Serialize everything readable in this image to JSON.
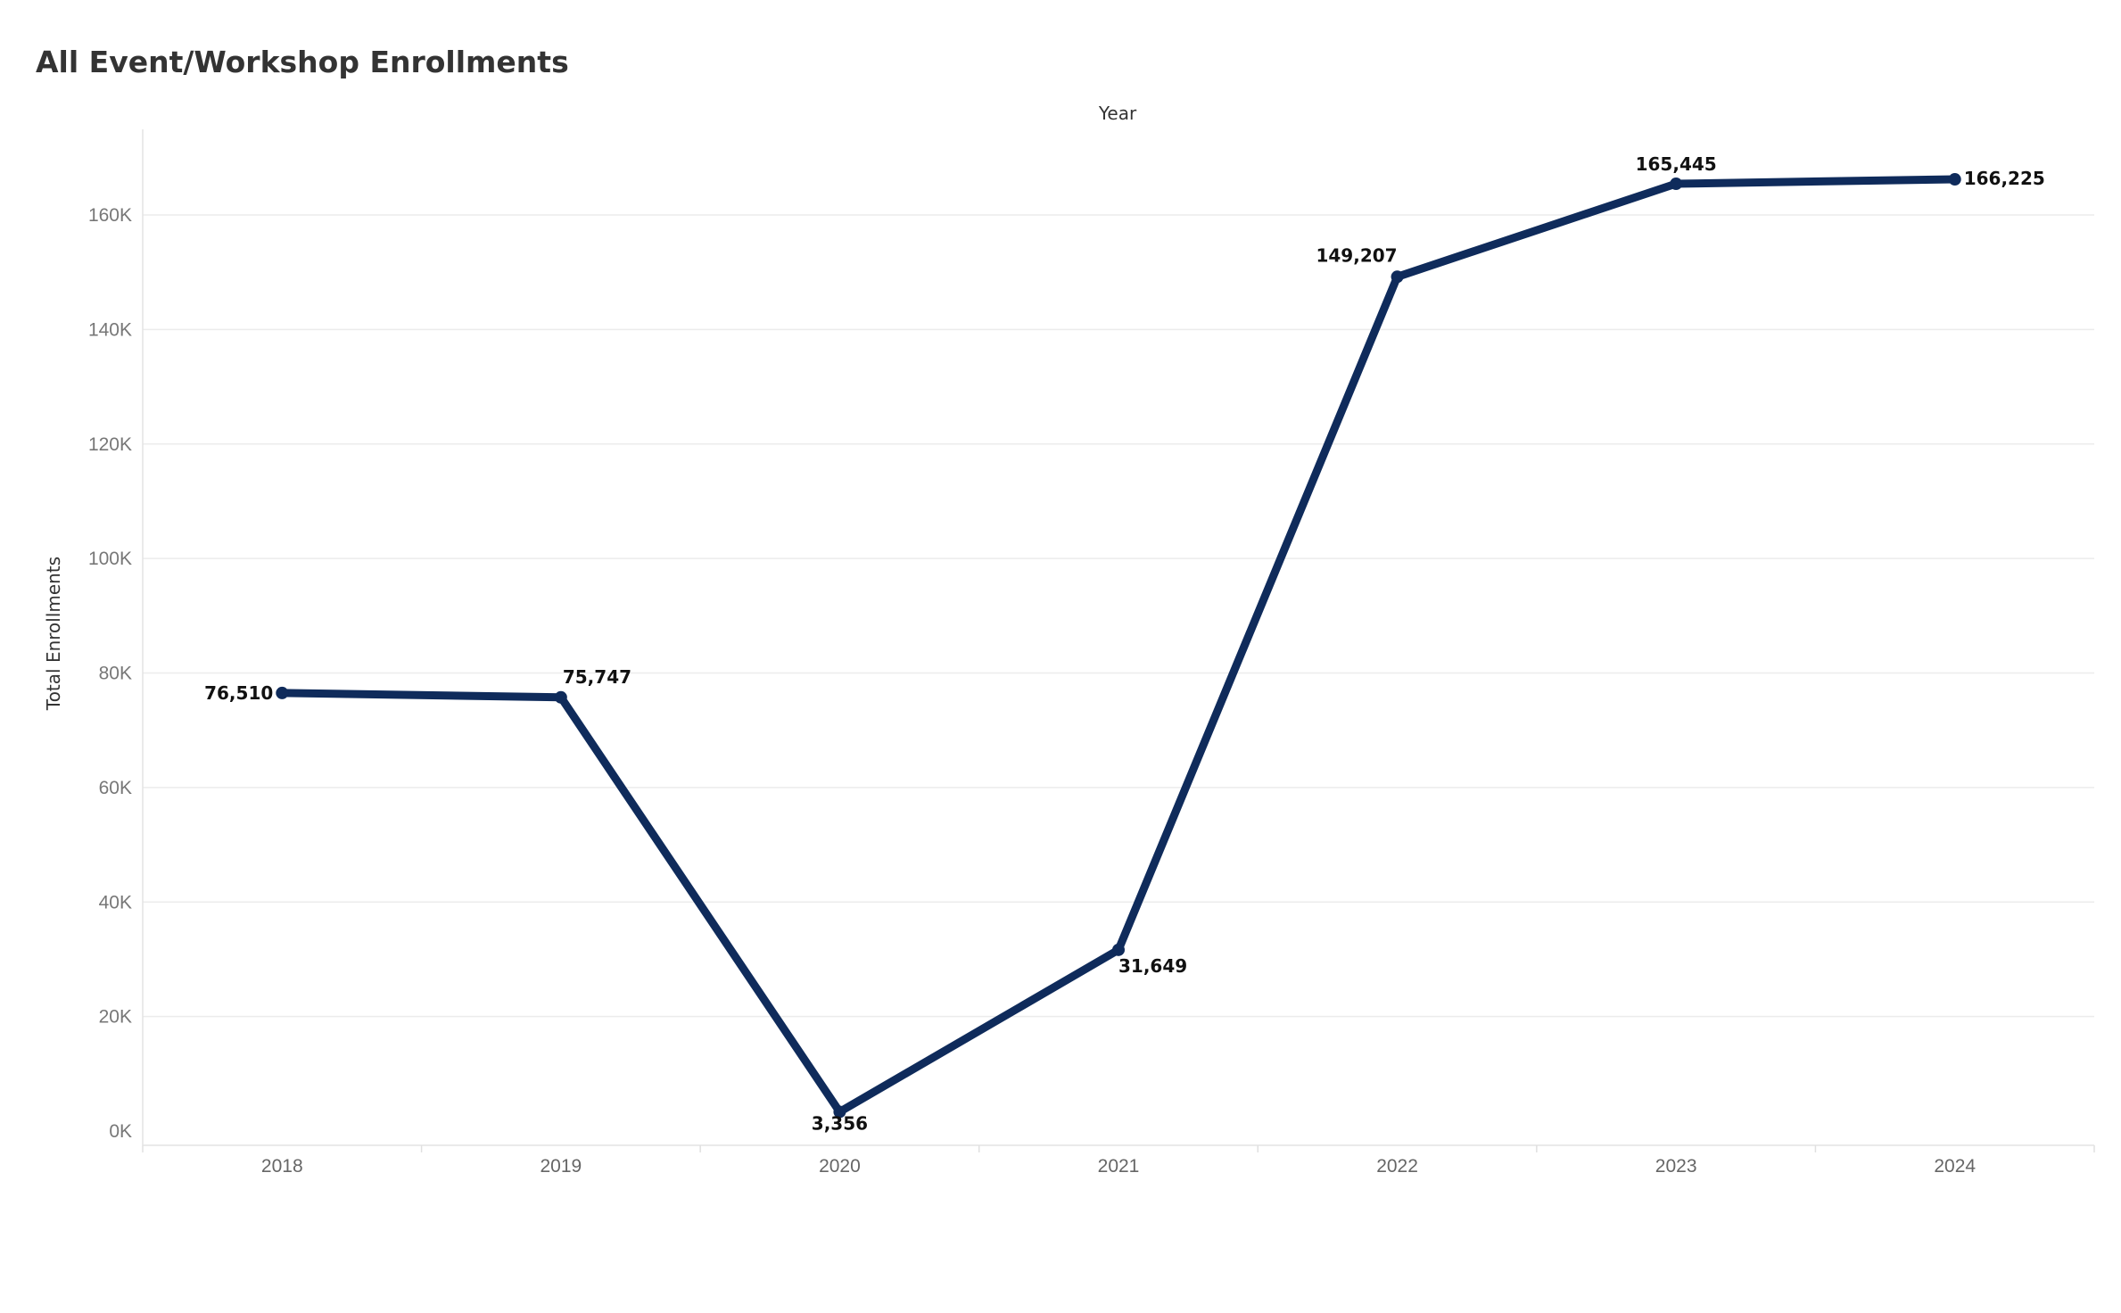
{
  "title": "All Event/Workshop Enrollments",
  "chart_data": {
    "type": "line",
    "title": "All Event/Workshop Enrollments",
    "xlabel": "Year",
    "ylabel": "Total Enrollments",
    "x": [
      "2018",
      "2019",
      "2020",
      "2021",
      "2022",
      "2023",
      "2024"
    ],
    "series": [
      {
        "values": [
          76510,
          75747,
          3356,
          31649,
          149207,
          165445,
          166225
        ]
      }
    ],
    "data_labels": [
      "76,510",
      "75,747",
      "3,356",
      "31,649",
      "149,207",
      "165,445",
      "166,225"
    ],
    "yticks": [
      0,
      20000,
      40000,
      60000,
      80000,
      100000,
      120000,
      140000,
      160000
    ],
    "ytick_labels": [
      "0K",
      "20K",
      "40K",
      "60K",
      "80K",
      "100K",
      "120K",
      "140K",
      "160K"
    ],
    "ylim": [
      0,
      175000
    ],
    "grid": true,
    "line_color": "#0f2b5b"
  }
}
